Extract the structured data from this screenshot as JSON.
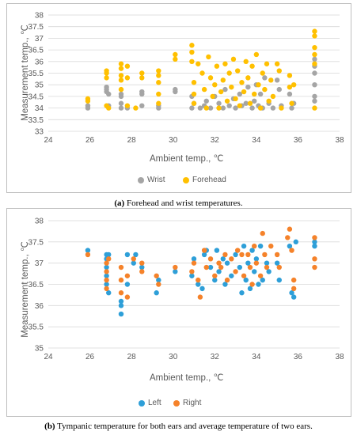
{
  "captions": {
    "a_label": "(a)",
    "a_text": " Forehead and wrist temperatures.",
    "b_label": "(b)",
    "b_text": " Tympanic temperature for both ears and average temperature of two ears."
  },
  "chart_data": [
    {
      "type": "scatter",
      "title": "",
      "xlabel": "Ambient temp., ℃",
      "ylabel": "Measurement temp., ℃",
      "xlim": [
        24,
        38
      ],
      "ylim": [
        33,
        38
      ],
      "xticks": [
        "24",
        "26",
        "28",
        "30",
        "32",
        "34",
        "36",
        "38"
      ],
      "yticks": [
        "33",
        "33.5",
        "34",
        "34.5",
        "35",
        "35.5",
        "36",
        "36.5",
        "37",
        "37.5",
        "38"
      ],
      "grid": "horizontal",
      "legend_position": "bottom",
      "series": [
        {
          "name": "Wrist",
          "color": "#a5a5a5",
          "points": [
            [
              25.9,
              34.0
            ],
            [
              25.9,
              34.1
            ],
            [
              26.8,
              34.8
            ],
            [
              26.8,
              34.9
            ],
            [
              26.8,
              34.7
            ],
            [
              26.9,
              34.6
            ],
            [
              26.9,
              34.1
            ],
            [
              27.5,
              34.2
            ],
            [
              27.5,
              34.0
            ],
            [
              27.5,
              34.6
            ],
            [
              27.5,
              34.5
            ],
            [
              27.8,
              34.0
            ],
            [
              28.5,
              34.7
            ],
            [
              28.5,
              34.6
            ],
            [
              28.5,
              34.1
            ],
            [
              29.3,
              34.0
            ],
            [
              29.3,
              34.1
            ],
            [
              30.1,
              34.8
            ],
            [
              30.1,
              34.7
            ],
            [
              30.9,
              34.0
            ],
            [
              30.9,
              34.5
            ],
            [
              31.0,
              34.2
            ],
            [
              31.3,
              34.0
            ],
            [
              31.5,
              34.1
            ],
            [
              31.6,
              34.3
            ],
            [
              31.8,
              34.0
            ],
            [
              32.0,
              34.5
            ],
            [
              32.2,
              34.2
            ],
            [
              32.4,
              34.0
            ],
            [
              32.5,
              34.8
            ],
            [
              32.7,
              34.1
            ],
            [
              32.9,
              34.4
            ],
            [
              33.0,
              34.0
            ],
            [
              33.2,
              34.6
            ],
            [
              33.3,
              34.1
            ],
            [
              33.5,
              34.2
            ],
            [
              33.6,
              34.9
            ],
            [
              33.8,
              34.0
            ],
            [
              33.9,
              34.3
            ],
            [
              34.0,
              35.0
            ],
            [
              34.1,
              34.1
            ],
            [
              34.2,
              34.6
            ],
            [
              34.3,
              34.0
            ],
            [
              34.4,
              35.3
            ],
            [
              34.6,
              34.2
            ],
            [
              34.8,
              34.0
            ],
            [
              35.0,
              35.2
            ],
            [
              35.1,
              34.8
            ],
            [
              35.2,
              34.1
            ],
            [
              35.6,
              34.6
            ],
            [
              35.7,
              34.0
            ],
            [
              35.8,
              34.2
            ],
            [
              36.8,
              34.5
            ],
            [
              36.8,
              34.3
            ],
            [
              36.8,
              35.8
            ],
            [
              36.8,
              35.5
            ],
            [
              36.8,
              36.1
            ],
            [
              36.8,
              35.0
            ]
          ]
        },
        {
          "name": "Forehead",
          "color": "#ffc000",
          "points": [
            [
              25.9,
              34.4
            ],
            [
              25.9,
              34.3
            ],
            [
              26.8,
              35.6
            ],
            [
              26.8,
              35.5
            ],
            [
              26.8,
              35.3
            ],
            [
              26.8,
              34.1
            ],
            [
              26.9,
              34.0
            ],
            [
              27.5,
              35.9
            ],
            [
              27.5,
              35.7
            ],
            [
              27.5,
              35.4
            ],
            [
              27.5,
              35.2
            ],
            [
              27.5,
              34.8
            ],
            [
              27.8,
              35.8
            ],
            [
              27.8,
              35.3
            ],
            [
              27.8,
              34.1
            ],
            [
              28.2,
              34.0
            ],
            [
              28.5,
              35.5
            ],
            [
              28.5,
              35.3
            ],
            [
              29.3,
              35.6
            ],
            [
              29.3,
              35.4
            ],
            [
              29.3,
              35.1
            ],
            [
              29.3,
              34.6
            ],
            [
              29.3,
              34.2
            ],
            [
              30.1,
              36.3
            ],
            [
              30.1,
              36.1
            ],
            [
              30.9,
              36.7
            ],
            [
              30.9,
              36.4
            ],
            [
              30.9,
              36.0
            ],
            [
              31.0,
              35.1
            ],
            [
              31.0,
              34.6
            ],
            [
              31.0,
              34.2
            ],
            [
              31.2,
              35.9
            ],
            [
              31.4,
              35.5
            ],
            [
              31.5,
              34.8
            ],
            [
              31.6,
              34.0
            ],
            [
              31.7,
              36.2
            ],
            [
              31.8,
              35.3
            ],
            [
              31.9,
              34.5
            ],
            [
              32.0,
              35.0
            ],
            [
              32.1,
              35.8
            ],
            [
              32.2,
              34.0
            ],
            [
              32.3,
              34.7
            ],
            [
              32.4,
              35.2
            ],
            [
              32.5,
              35.9
            ],
            [
              32.6,
              34.3
            ],
            [
              32.7,
              35.5
            ],
            [
              32.8,
              34.9
            ],
            [
              32.9,
              36.1
            ],
            [
              33.0,
              34.4
            ],
            [
              33.1,
              35.6
            ],
            [
              33.2,
              34.1
            ],
            [
              33.3,
              35.1
            ],
            [
              33.4,
              34.7
            ],
            [
              33.5,
              36.0
            ],
            [
              33.6,
              35.3
            ],
            [
              33.7,
              34.2
            ],
            [
              33.8,
              35.8
            ],
            [
              33.9,
              34.6
            ],
            [
              34.0,
              36.3
            ],
            [
              34.1,
              35.0
            ],
            [
              34.2,
              34.0
            ],
            [
              34.3,
              35.5
            ],
            [
              34.4,
              34.8
            ],
            [
              34.5,
              35.9
            ],
            [
              34.6,
              34.3
            ],
            [
              34.7,
              35.2
            ],
            [
              34.8,
              34.5
            ],
            [
              35.0,
              35.9
            ],
            [
              35.1,
              35.6
            ],
            [
              35.2,
              34.0
            ],
            [
              35.6,
              35.4
            ],
            [
              35.6,
              34.9
            ],
            [
              35.7,
              34.2
            ],
            [
              35.8,
              35.0
            ],
            [
              36.8,
              37.3
            ],
            [
              36.8,
              37.1
            ],
            [
              36.8,
              36.6
            ],
            [
              36.8,
              36.3
            ],
            [
              36.8,
              35.9
            ],
            [
              36.8,
              34.0
            ]
          ]
        }
      ]
    },
    {
      "type": "scatter",
      "title": "",
      "xlabel": "Ambient temp., ℃",
      "ylabel": "Measurement temp., ℃",
      "xlim": [
        24,
        38
      ],
      "ylim": [
        35,
        38
      ],
      "xticks": [
        "24",
        "26",
        "28",
        "30",
        "32",
        "34",
        "36",
        "38"
      ],
      "yticks": [
        "35",
        "35.5",
        "36",
        "36.5",
        "37",
        "37.5",
        "38"
      ],
      "grid": "horizontal",
      "legend_position": "bottom",
      "series": [
        {
          "name": "Left",
          "color": "#2e9fd8",
          "points": [
            [
              25.9,
              37.3
            ],
            [
              26.8,
              37.2
            ],
            [
              26.8,
              37.1
            ],
            [
              26.8,
              36.9
            ],
            [
              26.8,
              36.7
            ],
            [
              26.8,
              36.5
            ],
            [
              26.9,
              36.3
            ],
            [
              26.9,
              37.2
            ],
            [
              27.5,
              36.0
            ],
            [
              27.5,
              35.8
            ],
            [
              27.5,
              36.1
            ],
            [
              27.8,
              36.5
            ],
            [
              27.8,
              37.2
            ],
            [
              28.1,
              37.0
            ],
            [
              28.2,
              37.2
            ],
            [
              28.5,
              36.9
            ],
            [
              29.2,
              36.3
            ],
            [
              29.3,
              36.6
            ],
            [
              30.1,
              36.8
            ],
            [
              30.9,
              36.7
            ],
            [
              31.0,
              37.1
            ],
            [
              31.2,
              36.5
            ],
            [
              31.4,
              36.4
            ],
            [
              31.5,
              37.2
            ],
            [
              31.6,
              37.3
            ],
            [
              31.8,
              36.9
            ],
            [
              32.0,
              36.6
            ],
            [
              32.1,
              37.3
            ],
            [
              32.2,
              36.8
            ],
            [
              32.4,
              37.1
            ],
            [
              32.5,
              36.5
            ],
            [
              32.6,
              37.0
            ],
            [
              32.8,
              36.7
            ],
            [
              33.0,
              37.2
            ],
            [
              33.2,
              36.9
            ],
            [
              33.3,
              36.3
            ],
            [
              33.4,
              37.4
            ],
            [
              33.5,
              36.6
            ],
            [
              33.6,
              37.0
            ],
            [
              33.7,
              36.4
            ],
            [
              33.8,
              37.3
            ],
            [
              33.9,
              36.8
            ],
            [
              34.0,
              37.1
            ],
            [
              34.1,
              36.5
            ],
            [
              34.2,
              37.4
            ],
            [
              34.3,
              36.6
            ],
            [
              34.5,
              37.0
            ],
            [
              34.6,
              36.8
            ],
            [
              35.0,
              37.0
            ],
            [
              35.1,
              36.6
            ],
            [
              35.6,
              37.4
            ],
            [
              35.7,
              36.3
            ],
            [
              35.8,
              36.2
            ],
            [
              35.9,
              37.5
            ],
            [
              36.8,
              37.5
            ],
            [
              36.8,
              37.4
            ]
          ]
        },
        {
          "name": "Right",
          "color": "#f5822a",
          "points": [
            [
              25.9,
              37.2
            ],
            [
              26.8,
              37.0
            ],
            [
              26.8,
              36.8
            ],
            [
              26.8,
              36.6
            ],
            [
              26.8,
              36.4
            ],
            [
              26.9,
              37.1
            ],
            [
              27.5,
              36.3
            ],
            [
              27.5,
              36.6
            ],
            [
              27.5,
              36.9
            ],
            [
              27.8,
              36.7
            ],
            [
              27.8,
              36.2
            ],
            [
              28.1,
              37.1
            ],
            [
              28.5,
              37.0
            ],
            [
              28.5,
              36.8
            ],
            [
              29.2,
              36.7
            ],
            [
              29.3,
              36.5
            ],
            [
              30.1,
              36.9
            ],
            [
              30.9,
              36.8
            ],
            [
              31.0,
              37.0
            ],
            [
              31.2,
              36.6
            ],
            [
              31.3,
              36.2
            ],
            [
              31.5,
              37.3
            ],
            [
              31.6,
              36.9
            ],
            [
              31.8,
              37.1
            ],
            [
              32.0,
              36.7
            ],
            [
              32.2,
              37.0
            ],
            [
              32.3,
              36.9
            ],
            [
              32.5,
              37.2
            ],
            [
              32.6,
              36.6
            ],
            [
              32.8,
              37.1
            ],
            [
              33.0,
              36.8
            ],
            [
              33.1,
              37.3
            ],
            [
              33.3,
              37.2
            ],
            [
              33.4,
              36.7
            ],
            [
              33.6,
              37.2
            ],
            [
              33.7,
              36.9
            ],
            [
              33.8,
              36.5
            ],
            [
              33.9,
              37.4
            ],
            [
              34.0,
              37.0
            ],
            [
              34.2,
              36.7
            ],
            [
              34.3,
              37.7
            ],
            [
              34.4,
              37.2
            ],
            [
              34.5,
              36.9
            ],
            [
              34.7,
              37.4
            ],
            [
              35.0,
              37.2
            ],
            [
              35.1,
              36.9
            ],
            [
              35.5,
              37.6
            ],
            [
              35.6,
              37.8
            ],
            [
              35.7,
              37.3
            ],
            [
              35.8,
              36.6
            ],
            [
              35.8,
              36.4
            ],
            [
              36.8,
              37.6
            ],
            [
              36.8,
              37.1
            ],
            [
              36.8,
              36.9
            ]
          ]
        }
      ]
    }
  ]
}
